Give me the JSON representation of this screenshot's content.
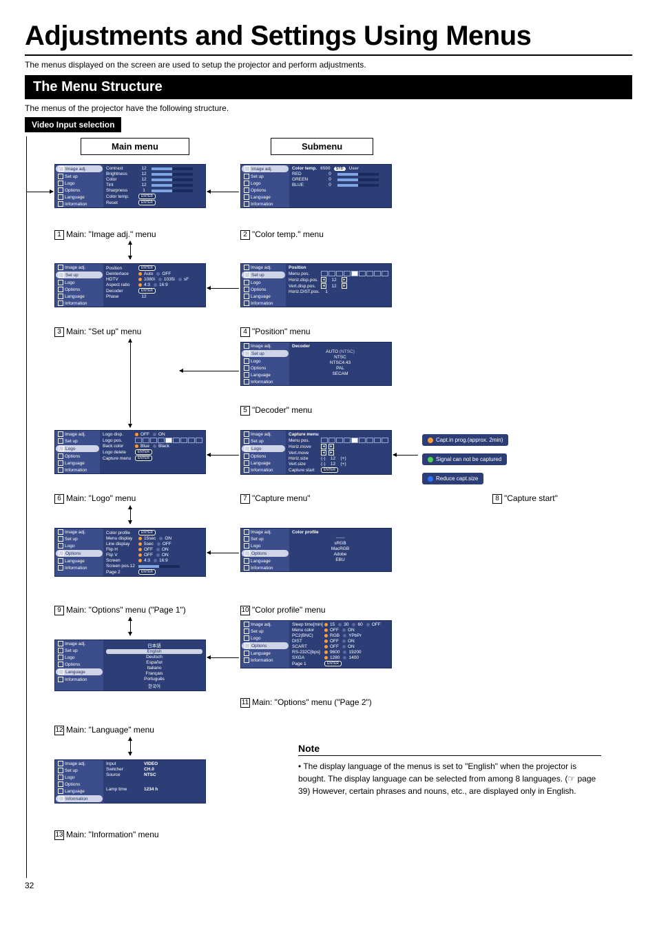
{
  "page": {
    "title": "Adjustments and Settings Using Menus",
    "intro": "The menus displayed on the screen are used to setup the projector and perform adjustments.",
    "section_header": "The Menu Structure",
    "sub_intro": "The menus of the projector have the following structure.",
    "tag": "Video Input selection",
    "page_number": "32"
  },
  "col_heads": {
    "main": "Main menu",
    "sub": "Submenu"
  },
  "sidebar_items": [
    "Image adj.",
    "Set up",
    "Logo",
    "Options",
    "Language",
    "Information"
  ],
  "menus": {
    "image_adj": {
      "rows": [
        {
          "lbl": "Contrast",
          "val": "12",
          "bar": true
        },
        {
          "lbl": "Brightness",
          "val": "12",
          "bar": true
        },
        {
          "lbl": "Color",
          "val": "12",
          "bar": true
        },
        {
          "lbl": "Tint",
          "val": "12",
          "bar": true
        },
        {
          "lbl": "Sharpness",
          "val": "1",
          "bar": true
        },
        {
          "lbl": "Color temp.",
          "enter": true
        },
        {
          "lbl": "Reset",
          "enter": true
        }
      ]
    },
    "color_temp": {
      "header": "Color temp.",
      "opts": [
        "6500",
        "STD",
        "User"
      ],
      "rows": [
        {
          "lbl": "RED",
          "val": "0",
          "bar": true
        },
        {
          "lbl": "GREEN",
          "val": "0",
          "bar": true
        },
        {
          "lbl": "BLUE",
          "val": "0",
          "bar": true
        }
      ]
    },
    "setup": {
      "rows": [
        {
          "lbl": "Position",
          "enter": true
        },
        {
          "lbl": "Deinterlace",
          "opts": [
            "Auto",
            "OFF"
          ]
        },
        {
          "lbl": "HDTV",
          "opts": [
            "1080i",
            "1035i",
            "sF"
          ]
        },
        {
          "lbl": "Aspect ratio",
          "opts": [
            "4:3",
            "16:9"
          ]
        },
        {
          "lbl": "Decoder",
          "enter": true
        },
        {
          "lbl": "Phase",
          "val": "12"
        }
      ]
    },
    "position": {
      "header": "Position",
      "rows": [
        {
          "lbl": "Menu pos.",
          "pos": true
        },
        {
          "lbl": "Horiz.disp.pos.",
          "val": "12",
          "arrows": true
        },
        {
          "lbl": "Vert.disp.pos.",
          "val": "12",
          "arrows": true
        },
        {
          "lbl": "Horiz.DIST.pos.",
          "val": "1"
        }
      ]
    },
    "decoder": {
      "header": "Decoder",
      "rows": [
        {
          "center": "AUTO",
          "suffix": "(NTSC)"
        },
        {
          "center": "NTSC"
        },
        {
          "center": "NTSC4.43"
        },
        {
          "center": "PAL"
        },
        {
          "center": "SECAM"
        }
      ]
    },
    "logo": {
      "rows": [
        {
          "lbl": "Logo disp.",
          "opts": [
            "OFF",
            "ON"
          ]
        },
        {
          "lbl": "Logo pos.",
          "pos": true
        },
        {
          "lbl": "Back color",
          "opts": [
            "Blue",
            "Black"
          ]
        },
        {
          "lbl": "Logo delete",
          "enter": true
        },
        {
          "lbl": "Capture menu",
          "enter": true
        }
      ]
    },
    "capture": {
      "header": "Capture menu",
      "rows": [
        {
          "lbl": "Menu pos.",
          "pos": true
        },
        {
          "lbl": "Horiz.move",
          "arrows": true
        },
        {
          "lbl": "Vert.move",
          "arrows": true
        },
        {
          "lbl": "Horiz.size",
          "val": "12",
          "pm": true
        },
        {
          "lbl": "Vert.size",
          "val": "12",
          "pm": true
        },
        {
          "lbl": "Capture start",
          "enter": true
        }
      ]
    },
    "options1": {
      "rows": [
        {
          "lbl": "Color profile",
          "enter": true
        },
        {
          "lbl": "Menu display",
          "opts": [
            "15sec",
            "ON"
          ]
        },
        {
          "lbl": "Line display",
          "opts": [
            "5sec",
            "OFF"
          ]
        },
        {
          "lbl": "Flip H",
          "opts": [
            "OFF",
            "ON"
          ]
        },
        {
          "lbl": "Flip V",
          "opts": [
            "OFF",
            "ON"
          ]
        },
        {
          "lbl": "Screen",
          "opts": [
            "4:3",
            "16:9"
          ]
        },
        {
          "lbl": "Screen pos.12",
          "bar": true
        },
        {
          "lbl": "Page 2",
          "enter": true
        }
      ]
    },
    "color_profile": {
      "header": "Color profile",
      "rows": [
        {
          "center": "------"
        },
        {
          "center": "sRGB"
        },
        {
          "center": "MacRGB"
        },
        {
          "center": "Adobe"
        },
        {
          "center": "EBU"
        }
      ]
    },
    "options2": {
      "rows": [
        {
          "lbl": "Sleep time[min]",
          "opts": [
            "15",
            "30",
            "60",
            "OFF"
          ]
        },
        {
          "lbl": "Menu color",
          "opts": [
            "OFF",
            "ON"
          ]
        },
        {
          "lbl": "PC2(BNC)",
          "opts": [
            "RGB",
            "YPbPr"
          ]
        },
        {
          "lbl": "DIST",
          "opts": [
            "OFF",
            "ON"
          ]
        },
        {
          "lbl": "SCART",
          "opts": [
            "OFF",
            "ON"
          ]
        },
        {
          "lbl": "RS-232C[bps]",
          "opts": [
            "9600",
            "19200"
          ]
        },
        {
          "lbl": "SXGA",
          "opts": [
            "1280",
            "1400"
          ]
        },
        {
          "lbl": "Page 1",
          "enter": true
        }
      ]
    },
    "language": {
      "rows": [
        {
          "center": "日本語"
        },
        {
          "center": "English",
          "sel": true
        },
        {
          "center": "Deutsch"
        },
        {
          "center": "Español"
        },
        {
          "center": "Italiano"
        },
        {
          "center": "Français"
        },
        {
          "center": "Português"
        },
        {
          "center": "한국어"
        }
      ]
    },
    "information": {
      "rows": [
        {
          "lbl": "Input",
          "rval": "VIDEO"
        },
        {
          "lbl": "Switcher",
          "rval": "CH.0"
        },
        {
          "lbl": "Source",
          "rval": "NTSC"
        },
        {
          "spacer": true
        },
        {
          "lbl": "Lamp time",
          "rval": "1234 h"
        }
      ]
    }
  },
  "messages": {
    "m1": {
      "text": "Capt.in prog.(approx. 2min)",
      "color": "#ff9d2e"
    },
    "m2": {
      "text": "Signal can not be captured",
      "color": "#50d050"
    },
    "m3": {
      "text": "Reduce capt.size",
      "color": "#3070ff"
    }
  },
  "captions": {
    "c1": "Main: \"Image adj.\" menu",
    "c2": "\"Color temp.\" menu",
    "c3": "Main: \"Set up\" menu",
    "c4": "\"Position\" menu",
    "c5": "\"Decoder\" menu",
    "c6": "Main: \"Logo\" menu",
    "c7": "\"Capture menu\"",
    "c8": "\"Capture start\"",
    "c9": "Main: \"Options\" menu (\"Page 1\")",
    "c10": "\"Color profile\" menu",
    "c11": "Main: \"Options\" menu (\"Page 2\")",
    "c12": "Main: \"Language\" menu",
    "c13": "Main: \"Information\" menu"
  },
  "note": {
    "heading": "Note",
    "body": "• The display language of the menus is set to \"English\" when the projector is bought. The display language can be selected from among 8 languages. (☞ page 39)\nHowever, certain phrases and nouns, etc., are displayed only in English."
  }
}
